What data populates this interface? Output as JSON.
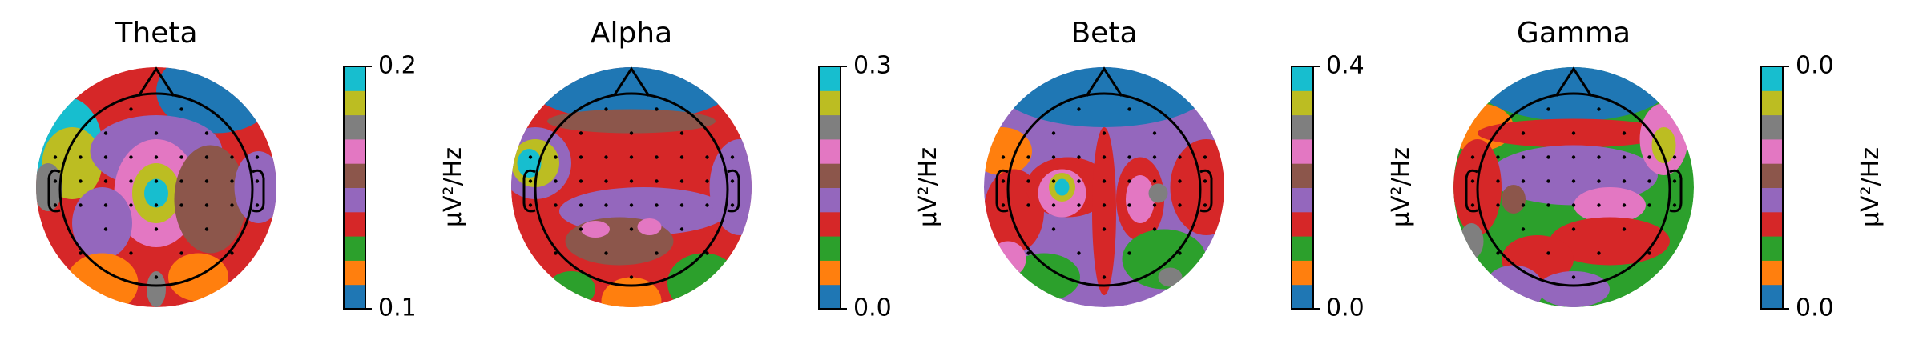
{
  "chart_data": [
    {
      "type": "topomap",
      "title": "Theta",
      "colorbar_label": "µV²/Hz",
      "colors": [
        "#1f77b4",
        "#ff7f0e",
        "#2ca02c",
        "#d62728",
        "#9467bd",
        "#8c564b",
        "#e377c2",
        "#7f7f7f",
        "#bcbd22",
        "#17becf"
      ],
      "ylim": [
        0.1,
        0.2
      ],
      "yticks": [
        0.1,
        0.2
      ]
    },
    {
      "type": "topomap",
      "title": "Alpha",
      "colorbar_label": "µV²/Hz",
      "colors": [
        "#1f77b4",
        "#ff7f0e",
        "#2ca02c",
        "#d62728",
        "#9467bd",
        "#8c564b",
        "#e377c2",
        "#7f7f7f",
        "#bcbd22",
        "#17becf"
      ],
      "ylim": [
        0,
        0.3
      ],
      "yticks": [
        {
          "value": 0,
          "label": "0.0"
        },
        0.3
      ]
    },
    {
      "type": "topomap",
      "title": "Beta",
      "colorbar_label": "µV²/Hz",
      "colors": [
        "#1f77b4",
        "#ff7f0e",
        "#2ca02c",
        "#d62728",
        "#9467bd",
        "#8c564b",
        "#e377c2",
        "#7f7f7f",
        "#bcbd22",
        "#17becf"
      ],
      "ylim": [
        0,
        0.4
      ],
      "yticks": [
        {
          "value": 0,
          "label": "0.0"
        },
        0.4
      ]
    },
    {
      "type": "topomap",
      "title": "Gamma",
      "colorbar_label": "µV²/Hz",
      "colors": [
        "#1f77b4",
        "#ff7f0e",
        "#2ca02c",
        "#d62728",
        "#9467bd",
        "#8c564b",
        "#e377c2",
        "#7f7f7f",
        "#bcbd22",
        "#17becf"
      ],
      "ylim": [
        2e-05,
        5e-05
      ],
      "yticks": [
        {
          "value": 2e-05,
          "label": "0.0"
        },
        {
          "value": 5e-05,
          "label": "0.0"
        }
      ]
    }
  ]
}
